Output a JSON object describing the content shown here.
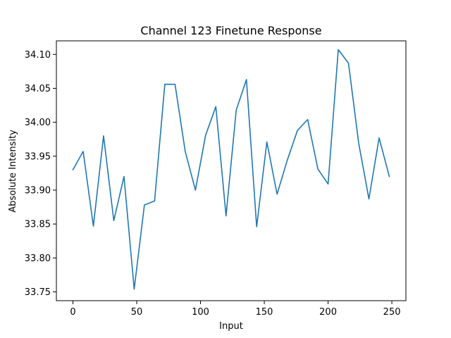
{
  "chart_data": {
    "type": "line",
    "title": "Channel 123 Finetune Response",
    "xlabel": "Input",
    "ylabel": "Absolute Intensity",
    "xlim": [
      -13,
      261
    ],
    "ylim": [
      33.737,
      34.12
    ],
    "xticks": [
      0,
      50,
      100,
      150,
      200,
      250
    ],
    "xtick_labels": [
      "0",
      "50",
      "100",
      "150",
      "200",
      "250"
    ],
    "yticks": [
      33.75,
      33.8,
      33.85,
      33.9,
      33.95,
      34.0,
      34.05,
      34.1
    ],
    "ytick_labels": [
      "33.75",
      "33.80",
      "33.85",
      "33.90",
      "33.95",
      "34.00",
      "34.05",
      "34.10"
    ],
    "grid": false,
    "series": [
      {
        "color": "#1f77b4",
        "x": [
          0,
          8,
          16,
          24,
          32,
          40,
          48,
          56,
          64,
          72,
          80,
          88,
          96,
          104,
          112,
          120,
          128,
          136,
          144,
          152,
          160,
          168,
          176,
          184,
          192,
          200,
          208,
          216,
          224,
          232,
          240,
          248
        ],
        "y": [
          33.93,
          33.957,
          33.847,
          33.98,
          33.855,
          33.92,
          33.754,
          33.878,
          33.884,
          34.056,
          34.056,
          33.957,
          33.9,
          33.981,
          34.023,
          33.862,
          34.018,
          34.063,
          33.846,
          33.971,
          33.894,
          33.944,
          33.988,
          34.004,
          33.931,
          33.909,
          34.107,
          34.087,
          33.969,
          33.887,
          33.977,
          33.92
        ]
      }
    ]
  }
}
